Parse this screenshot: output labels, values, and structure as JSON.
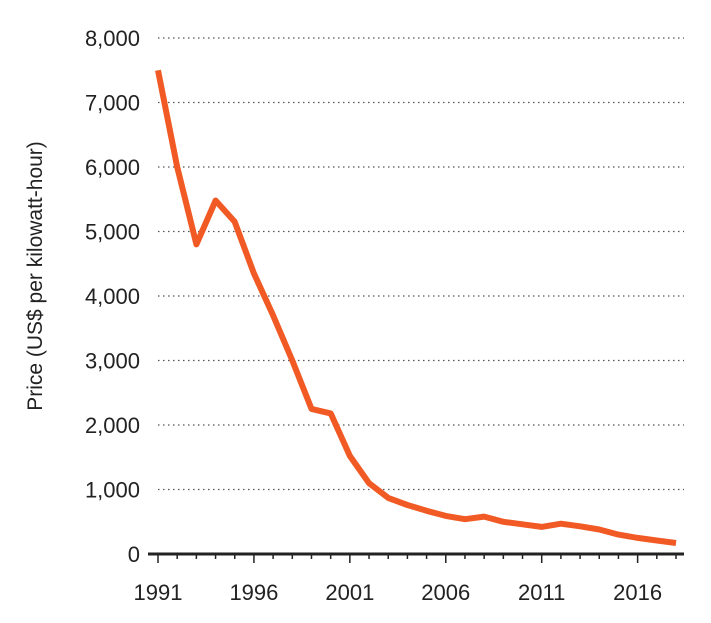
{
  "chart_data": {
    "type": "line",
    "title": "",
    "xlabel": "",
    "ylabel": "Price (US$ per kilowatt-hour)",
    "xlim": [
      1991,
      2018
    ],
    "ylim": [
      0,
      8000
    ],
    "grid": true,
    "x_ticks": [
      {
        "value": 1991,
        "label": "1991"
      },
      {
        "value": 1996,
        "label": "1996"
      },
      {
        "value": 2001,
        "label": "2001"
      },
      {
        "value": 2006,
        "label": "2006"
      },
      {
        "value": 2011,
        "label": "2011"
      },
      {
        "value": 2016,
        "label": "2016"
      }
    ],
    "y_ticks": [
      {
        "value": 0,
        "label": "0"
      },
      {
        "value": 1000,
        "label": "1,000"
      },
      {
        "value": 2000,
        "label": "2,000"
      },
      {
        "value": 3000,
        "label": "3,000"
      },
      {
        "value": 4000,
        "label": "4,000"
      },
      {
        "value": 5000,
        "label": "5,000"
      },
      {
        "value": 6000,
        "label": "6,000"
      },
      {
        "value": 7000,
        "label": "7,000"
      },
      {
        "value": 8000,
        "label": "8,000"
      }
    ],
    "series": [
      {
        "color": "#f15a24",
        "points": [
          {
            "x": 1991,
            "y": 7500
          },
          {
            "x": 1992,
            "y": 6000
          },
          {
            "x": 1993,
            "y": 4800
          },
          {
            "x": 1994,
            "y": 5480
          },
          {
            "x": 1995,
            "y": 5150
          },
          {
            "x": 1996,
            "y": 4350
          },
          {
            "x": 1997,
            "y": 3700
          },
          {
            "x": 1998,
            "y": 3000
          },
          {
            "x": 1999,
            "y": 2250
          },
          {
            "x": 2000,
            "y": 2180
          },
          {
            "x": 2001,
            "y": 1520
          },
          {
            "x": 2002,
            "y": 1100
          },
          {
            "x": 2003,
            "y": 870
          },
          {
            "x": 2004,
            "y": 760
          },
          {
            "x": 2005,
            "y": 670
          },
          {
            "x": 2006,
            "y": 590
          },
          {
            "x": 2007,
            "y": 540
          },
          {
            "x": 2008,
            "y": 580
          },
          {
            "x": 2009,
            "y": 500
          },
          {
            "x": 2010,
            "y": 460
          },
          {
            "x": 2011,
            "y": 420
          },
          {
            "x": 2012,
            "y": 470
          },
          {
            "x": 2013,
            "y": 430
          },
          {
            "x": 2014,
            "y": 380
          },
          {
            "x": 2015,
            "y": 300
          },
          {
            "x": 2016,
            "y": 250
          },
          {
            "x": 2017,
            "y": 210
          },
          {
            "x": 2018,
            "y": 170
          }
        ]
      }
    ]
  }
}
